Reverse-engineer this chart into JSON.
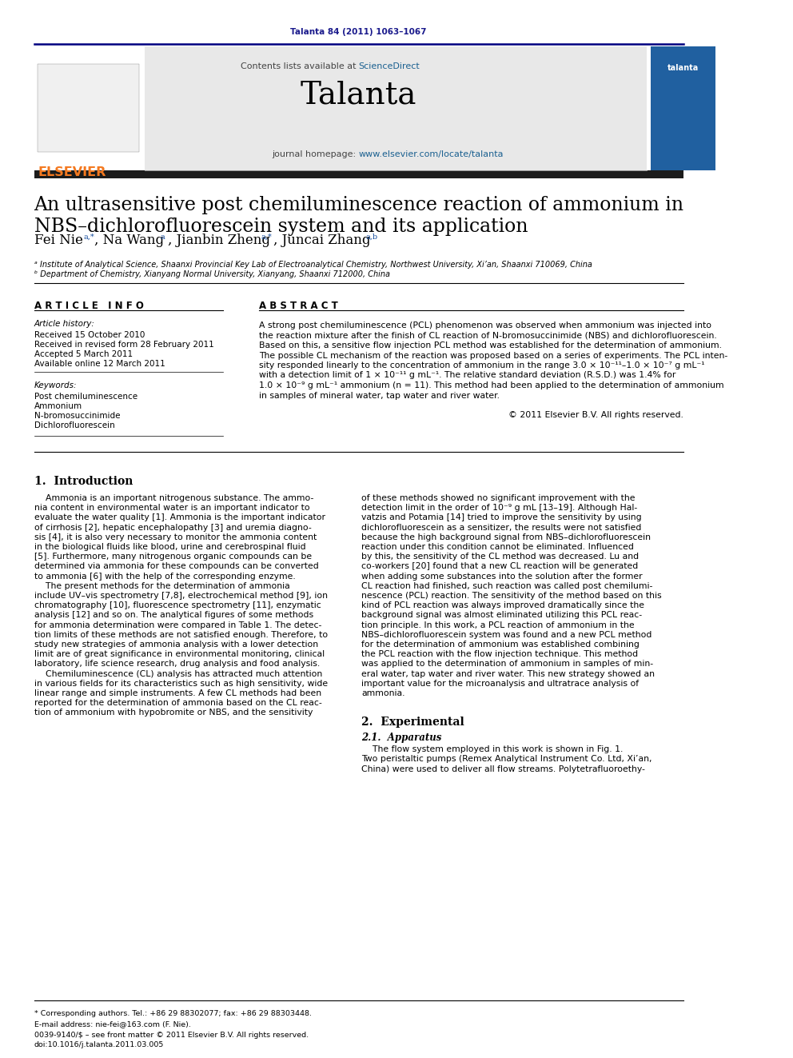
{
  "page_width": 9.92,
  "page_height": 13.23,
  "dpi": 100,
  "bg": "#ffffff",
  "journal_ref": "Talanta 84 (2011) 1063–1067",
  "journal_ref_color": "#1a1a8c",
  "header_gray_bg": "#e8e8e8",
  "elsevier_orange": "#f47920",
  "sciencedirect_blue": "#1a6090",
  "url_blue": "#1a6090",
  "dark_bar_color": "#1c1c1c",
  "dark_navy_line": "#00007f",
  "black": "#000000",
  "blue_ref": "#1a50a0",
  "title_line1": "An ultrasensitive post chemiluminescence reaction of ammonium in",
  "title_line2": "NBS–dichlorofluorescein system and its application",
  "affil1": "ᵃ Institute of Analytical Science, Shaanxi Provincial Key Lab of Electroanalytical Chemistry, Northwest University, Xi’an, Shaanxi 710069, China",
  "affil2": "ᵇ Department of Chemistry, Xianyang Normal University, Xianyang, Shaanxi 712000, China",
  "abstract_lines": [
    "A strong post chemiluminescence (PCL) phenomenon was observed when ammonium was injected into",
    "the reaction mixture after the finish of CL reaction of N-bromosuccinimide (NBS) and dichlorofluorescein.",
    "Based on this, a sensitive flow injection PCL method was established for the determination of ammonium.",
    "The possible CL mechanism of the reaction was proposed based on a series of experiments. The PCL inten-",
    "sity responded linearly to the concentration of ammonium in the range 3.0 × 10⁻¹¹–1.0 × 10⁻⁷ g mL⁻¹",
    "with a detection limit of 1 × 10⁻¹¹ g mL⁻¹. The relative standard deviation (R.S.D.) was 1.4% for",
    "1.0 × 10⁻⁹ g mL⁻¹ ammonium (n = 11). This method had been applied to the determination of ammonium",
    "in samples of mineral water, tap water and river water."
  ],
  "abstract_copyright": "© 2011 Elsevier B.V. All rights reserved.",
  "intro_col1": [
    "    Ammonia is an important nitrogenous substance. The ammo-",
    "nia content in environmental water is an important indicator to",
    "evaluate the water quality [1]. Ammonia is the important indicator",
    "of cirrhosis [2], hepatic encephalopathy [3] and uremia diagno-",
    "sis [4], it is also very necessary to monitor the ammonia content",
    "in the biological fluids like blood, urine and cerebrospinal fluid",
    "[5]. Furthermore, many nitrogenous organic compounds can be",
    "determined via ammonia for these compounds can be converted",
    "to ammonia [6] with the help of the corresponding enzyme.",
    "    The present methods for the determination of ammonia",
    "include UV–vis spectrometry [7,8], electrochemical method [9], ion",
    "chromatography [10], fluorescence spectrometry [11], enzymatic",
    "analysis [12] and so on. The analytical figures of some methods",
    "for ammonia determination were compared in Table 1. The detec-",
    "tion limits of these methods are not satisfied enough. Therefore, to",
    "study new strategies of ammonia analysis with a lower detection",
    "limit are of great significance in environmental monitoring, clinical",
    "laboratory, life science research, drug analysis and food analysis.",
    "    Chemiluminescence (CL) analysis has attracted much attention",
    "in various fields for its characteristics such as high sensitivity, wide",
    "linear range and simple instruments. A few CL methods had been",
    "reported for the determination of ammonia based on the CL reac-",
    "tion of ammonium with hypobromite or NBS, and the sensitivity"
  ],
  "intro_col2": [
    "of these methods showed no significant improvement with the",
    "detection limit in the order of 10⁻⁹ g mL [13–19]. Although Hal-",
    "vatzis and Potamia [14] tried to improve the sensitivity by using",
    "dichlorofluorescein as a sensitizer, the results were not satisfied",
    "because the high background signal from NBS–dichlorofluorescein",
    "reaction under this condition cannot be eliminated. Influenced",
    "by this, the sensitivity of the CL method was decreased. Lu and",
    "co-workers [20] found that a new CL reaction will be generated",
    "when adding some substances into the solution after the former",
    "CL reaction had finished, such reaction was called post chemilumi-",
    "nescence (PCL) reaction. The sensitivity of the method based on this",
    "kind of PCL reaction was always improved dramatically since the",
    "background signal was almost eliminated utilizing this PCL reac-",
    "tion principle. In this work, a PCL reaction of ammonium in the",
    "NBS–dichlorofluorescein system was found and a new PCL method",
    "for the determination of ammonium was established combining",
    "the PCL reaction with the flow injection technique. This method",
    "was applied to the determination of ammonium in samples of min-",
    "eral water, tap water and river water. This new strategy showed an",
    "important value for the microanalysis and ultratrace analysis of",
    "ammonia."
  ],
  "exp_col2": [
    "    The flow system employed in this work is shown in Fig. 1.",
    "Two peristaltic pumps (Remex Analytical Instrument Co. Ltd, Xi’an,",
    "China) were used to deliver all flow streams. Polytetrafluoroethy-"
  ],
  "footer_note": "* Corresponding authors. Tel.: +86 29 88302077; fax: +86 29 88303448.",
  "footer_email": "E-mail address: nie-fei@163.com (F. Nie).",
  "footer_issn": "0039-9140/$ – see front matter © 2011 Elsevier B.V. All rights reserved.",
  "footer_doi": "doi:10.1016/j.talanta.2011.03.005"
}
